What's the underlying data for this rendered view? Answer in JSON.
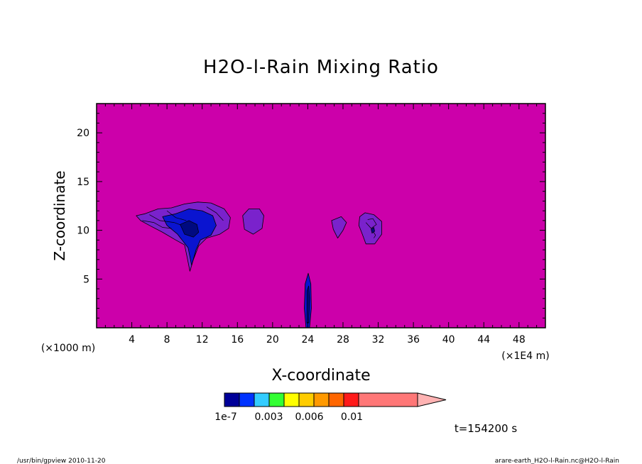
{
  "chart_data": {
    "type": "heatmap",
    "title": "H2O-l-Rain Mixing Ratio",
    "xlabel": "X-coordinate",
    "ylabel": "Z-coordinate",
    "x_unit_left": "(×1000 m)",
    "x_unit_right": "(×1E4 m)",
    "xlim": [
      0,
      51
    ],
    "ylim": [
      0,
      23
    ],
    "x_ticks": [
      4,
      8,
      12,
      16,
      20,
      24,
      28,
      32,
      36,
      40,
      44,
      48
    ],
    "y_ticks": [
      5,
      10,
      15,
      20
    ],
    "background_color": "#cc00aa",
    "colorbar": {
      "colors": [
        "#000099",
        "#0033ff",
        "#33ccff",
        "#33ff33",
        "#ffff00",
        "#ffcc00",
        "#ff9900",
        "#ff6600",
        "#ff1a1a",
        "#ff7777",
        "#ffb3b3"
      ],
      "labels": [
        {
          "text": "1e-7",
          "value": 0
        },
        {
          "text": "0.003",
          "value": 0.003
        },
        {
          "text": "0.006",
          "value": 0.006
        },
        {
          "text": "0.01",
          "value": 0.01
        }
      ]
    },
    "regions": [
      {
        "level": "low",
        "color": "#7a22cc",
        "points": [
          [
            4.5,
            11.5
          ],
          [
            5.5,
            11.7
          ],
          [
            7,
            12.2
          ],
          [
            8.5,
            12.3
          ],
          [
            10,
            12.7
          ],
          [
            11.5,
            12.9
          ],
          [
            13,
            12.8
          ],
          [
            14.5,
            12.2
          ],
          [
            15.2,
            11.3
          ],
          [
            15,
            10.2
          ],
          [
            14,
            9.6
          ],
          [
            12.5,
            9.2
          ],
          [
            11.6,
            8.4
          ],
          [
            11,
            7
          ],
          [
            10.6,
            5.8
          ],
          [
            10.3,
            7.2
          ],
          [
            10,
            8.5
          ],
          [
            9,
            9
          ],
          [
            7.5,
            9.8
          ],
          [
            6,
            10.5
          ],
          [
            5,
            11
          ]
        ]
      },
      {
        "level": "low",
        "color": "#7a22cc",
        "points": [
          [
            16.6,
            11.5
          ],
          [
            17.3,
            12.2
          ],
          [
            18.5,
            12.2
          ],
          [
            19,
            11.5
          ],
          [
            18.8,
            10.2
          ],
          [
            17.8,
            9.6
          ],
          [
            16.8,
            10.1
          ]
        ]
      },
      {
        "level": "low",
        "color": "#7a22cc",
        "points": [
          [
            26.7,
            11
          ],
          [
            27.8,
            11.4
          ],
          [
            28.4,
            10.8
          ],
          [
            28,
            10
          ],
          [
            27.4,
            9.2
          ],
          [
            26.9,
            10.1
          ]
        ]
      },
      {
        "level": "low",
        "color": "#7a22cc",
        "points": [
          [
            29.9,
            11.4
          ],
          [
            30.5,
            11.8
          ],
          [
            31.5,
            11.6
          ],
          [
            32.4,
            10.9
          ],
          [
            32.4,
            9.6
          ],
          [
            31.6,
            8.6
          ],
          [
            30.6,
            8.6
          ],
          [
            30.2,
            9.6
          ],
          [
            29.8,
            10.5
          ]
        ]
      },
      {
        "level": "high",
        "color": "#0a14d0",
        "points": [
          [
            7.5,
            11.4
          ],
          [
            9,
            11.7
          ],
          [
            10.5,
            12.2
          ],
          [
            12,
            12
          ],
          [
            13.2,
            11.5
          ],
          [
            13.6,
            10.5
          ],
          [
            13,
            9.5
          ],
          [
            11.8,
            9
          ],
          [
            11.3,
            8
          ],
          [
            10.8,
            6.4
          ],
          [
            10.4,
            8.2
          ],
          [
            9.2,
            9.6
          ],
          [
            8,
            10.5
          ]
        ]
      },
      {
        "level": "high",
        "color": "#0a14d0",
        "points": [
          [
            23.7,
            4.5
          ],
          [
            24.05,
            5.6
          ],
          [
            24.35,
            4.5
          ],
          [
            24.4,
            2
          ],
          [
            24.2,
            0
          ],
          [
            23.8,
            0
          ],
          [
            23.6,
            2
          ]
        ]
      }
    ],
    "fine_contours": [
      {
        "points": [
          [
            5.2,
            11
          ],
          [
            6.5,
            10.8
          ],
          [
            7.5,
            10.3
          ],
          [
            8.5,
            10.2
          ]
        ]
      },
      {
        "points": [
          [
            6,
            11.6
          ],
          [
            7.2,
            11
          ],
          [
            8.8,
            10.8
          ],
          [
            10,
            10.4
          ]
        ]
      },
      {
        "points": [
          [
            8,
            12
          ],
          [
            9,
            11.3
          ],
          [
            10.2,
            11
          ]
        ]
      },
      {
        "points": [
          [
            12.5,
            12.4
          ],
          [
            13.6,
            11.8
          ],
          [
            14.4,
            11
          ]
        ]
      },
      {
        "points": [
          [
            30.6,
            10.8
          ],
          [
            31.2,
            10.2
          ],
          [
            31.8,
            10.6
          ],
          [
            31.4,
            11.2
          ],
          [
            30.8,
            11.1
          ]
        ]
      },
      {
        "points": [
          [
            31.4,
            9.9
          ],
          [
            31.7,
            9.5
          ],
          [
            31.5,
            9.2
          ]
        ]
      }
    ],
    "dark_cores": [
      {
        "points": [
          [
            9.5,
            10.6
          ],
          [
            10.5,
            11
          ],
          [
            11.4,
            10.6
          ],
          [
            11.6,
            9.8
          ],
          [
            11,
            9.3
          ],
          [
            10,
            9.6
          ]
        ]
      },
      {
        "points": [
          [
            23.9,
            3.8
          ],
          [
            24.1,
            4.3
          ],
          [
            24.2,
            3
          ],
          [
            24.1,
            0.5
          ],
          [
            23.9,
            0.5
          ]
        ]
      },
      {
        "points": [
          [
            31.2,
            10.1
          ],
          [
            31.5,
            10.3
          ],
          [
            31.6,
            9.9
          ],
          [
            31.3,
            9.7
          ]
        ]
      }
    ]
  },
  "annotations": {
    "time": "t=154200 s",
    "footer_left": "/usr/bin/gpview  2010-11-20",
    "footer_right": "arare-earth_H2O-l-Rain.nc@H2O-l-Rain"
  }
}
